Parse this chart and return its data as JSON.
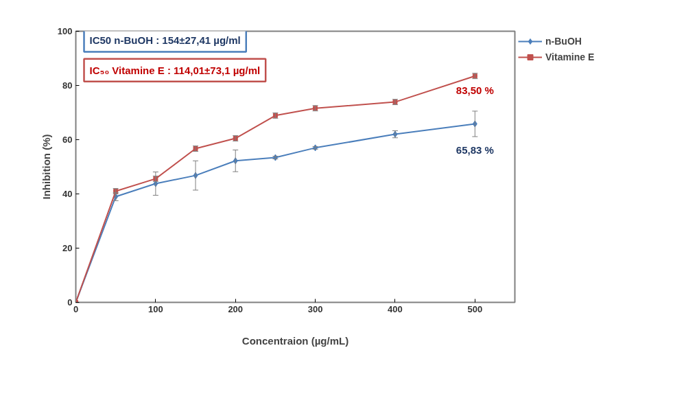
{
  "chart_data": {
    "type": "line",
    "xlabel": "Concentraion (µg/mL)",
    "ylabel": "Inhibition (%)",
    "x": [
      0,
      50,
      100,
      150,
      200,
      250,
      300,
      400,
      500
    ],
    "xlim": [
      0,
      550
    ],
    "xticks": [
      0,
      100,
      200,
      300,
      400,
      500
    ],
    "ylim": [
      0,
      100
    ],
    "yticks": [
      0,
      20,
      40,
      60,
      80,
      100
    ],
    "grid": false,
    "legend": "right",
    "line_style": "solid",
    "series": [
      {
        "name": "n-BuOH",
        "color": "#4a7ebb",
        "marker": "diamond",
        "values": [
          0,
          39,
          43.8,
          46.8,
          52.2,
          53.4,
          57,
          62,
          65.83
        ],
        "errors": [
          null,
          1.5,
          4.3,
          5.4,
          4,
          0.5,
          0.5,
          1.3,
          4.7
        ]
      },
      {
        "name": "Vitamine E",
        "color": "#c0504d",
        "marker": "square",
        "values": [
          0,
          41,
          45.6,
          56.7,
          60.5,
          68.9,
          71.6,
          73.9,
          83.5
        ],
        "errors": [
          null,
          1,
          1,
          1,
          1,
          1,
          1,
          1,
          1
        ]
      }
    ],
    "annotations": [
      "IC50 n-BuOH : 154±27,41 µg/ml",
      "IC₅₀ Vitamine E : 114,01±73,1 µg/ml",
      {
        "text": "83,50 %",
        "x": 500,
        "y": 83.5
      },
      {
        "text": "65,83 %",
        "x": 500,
        "y": 65.83
      }
    ]
  }
}
